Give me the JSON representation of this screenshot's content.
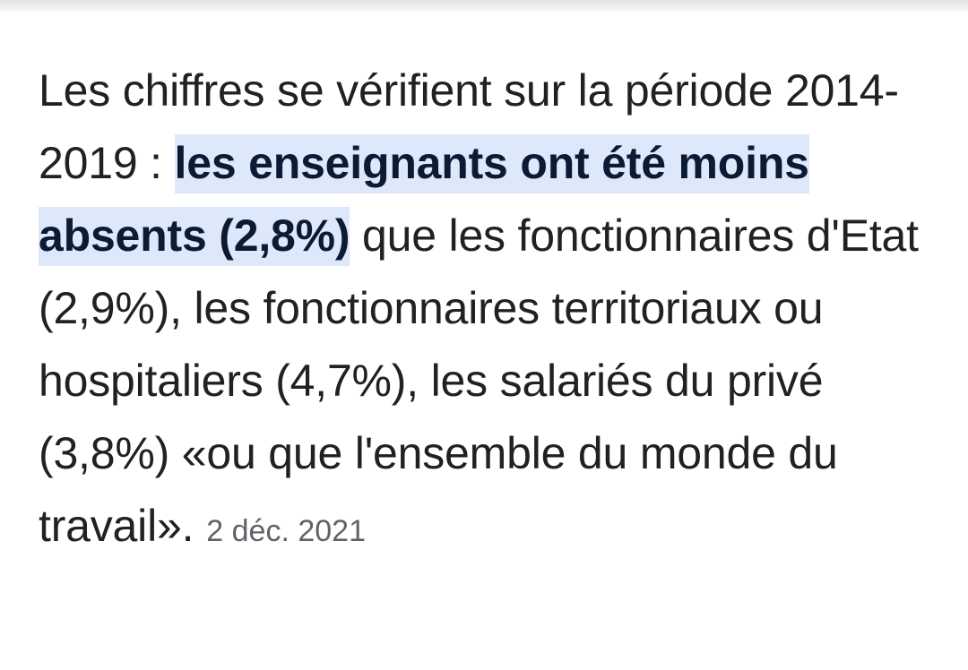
{
  "snippet": {
    "text_before": "Les chiffres se vérifient sur la période 2014-2019 : ",
    "highlighted_text": "les enseignants ont été moins absents (2,8%)",
    "text_after": " que les fonctionnaires d'Etat (2,9%), les fonctionnaires territoriaux ou hospitaliers (4,7%), les salariés du privé (3,8%) «ou que l'ensemble du monde du travail».",
    "date": "2 déc. 2021"
  },
  "colors": {
    "highlight_background": "#dde8fb",
    "body_text": "#202124",
    "date_text": "#5f6368"
  }
}
